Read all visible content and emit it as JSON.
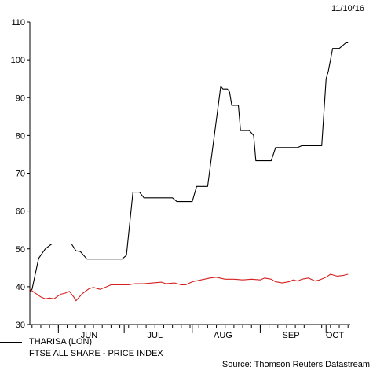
{
  "date_label": "11/10/16",
  "source_label": "Source: Thomson Reuters Datastream",
  "colors": {
    "tharisa": "#000000",
    "ftse": "#d62020",
    "axis": "#000000"
  },
  "chart_data": {
    "type": "line",
    "title": "",
    "xlabel": "",
    "ylabel": "",
    "ylim": [
      30,
      110
    ],
    "y_ticks": [
      30,
      40,
      50,
      60,
      70,
      80,
      90,
      100,
      110
    ],
    "x_range": [
      "2016-05-19",
      "2016-10-12"
    ],
    "x_tick_labels": [
      {
        "label": "JUN",
        "date": "2016-06-15"
      },
      {
        "label": "JUL",
        "date": "2016-07-15"
      },
      {
        "label": "AUG",
        "date": "2016-08-15"
      },
      {
        "label": "SEP",
        "date": "2016-09-15"
      },
      {
        "label": "OCT",
        "date": "2016-10-05"
      }
    ],
    "grid": false,
    "legend_position": "bottom-left",
    "series": [
      {
        "name": "THARISA (LON)",
        "color": "#000000",
        "points": [
          [
            "2016-05-19",
            38.8
          ],
          [
            "2016-05-20",
            39.3
          ],
          [
            "2016-05-23",
            47.5
          ],
          [
            "2016-05-26",
            50.0
          ],
          [
            "2016-05-29",
            51.3
          ],
          [
            "2016-06-07",
            51.3
          ],
          [
            "2016-06-09",
            49.5
          ],
          [
            "2016-06-11",
            49.3
          ],
          [
            "2016-06-14",
            47.3
          ],
          [
            "2016-06-30",
            47.3
          ],
          [
            "2016-07-02",
            48.3
          ],
          [
            "2016-07-05",
            65.0
          ],
          [
            "2016-07-08",
            65.0
          ],
          [
            "2016-07-10",
            63.5
          ],
          [
            "2016-07-23",
            63.5
          ],
          [
            "2016-07-25",
            62.5
          ],
          [
            "2016-08-01",
            62.5
          ],
          [
            "2016-08-03",
            66.5
          ],
          [
            "2016-08-08",
            66.5
          ],
          [
            "2016-08-14",
            93.0
          ],
          [
            "2016-08-15",
            92.3
          ],
          [
            "2016-08-17",
            92.3
          ],
          [
            "2016-08-18",
            91.5
          ],
          [
            "2016-08-19",
            88.0
          ],
          [
            "2016-08-22",
            88.0
          ],
          [
            "2016-08-23",
            81.3
          ],
          [
            "2016-08-27",
            81.3
          ],
          [
            "2016-08-29",
            80.0
          ],
          [
            "2016-08-30",
            73.3
          ],
          [
            "2016-09-06",
            73.3
          ],
          [
            "2016-09-08",
            76.8
          ],
          [
            "2016-09-18",
            76.8
          ],
          [
            "2016-09-20",
            77.3
          ],
          [
            "2016-09-29",
            77.3
          ],
          [
            "2016-10-01",
            95.0
          ],
          [
            "2016-10-02",
            97.0
          ],
          [
            "2016-10-04",
            103.0
          ],
          [
            "2016-10-07",
            103.0
          ],
          [
            "2016-10-10",
            104.5
          ],
          [
            "2016-10-11",
            104.5
          ]
        ]
      },
      {
        "name": "FTSE ALL SHARE - PRICE INDEX",
        "color": "#d62020",
        "points": [
          [
            "2016-05-19",
            39.3
          ],
          [
            "2016-05-21",
            38.5
          ],
          [
            "2016-05-24",
            37.3
          ],
          [
            "2016-05-26",
            36.8
          ],
          [
            "2016-05-28",
            37.0
          ],
          [
            "2016-05-30",
            36.8
          ],
          [
            "2016-06-02",
            38.0
          ],
          [
            "2016-06-04",
            38.3
          ],
          [
            "2016-06-06",
            38.8
          ],
          [
            "2016-06-08",
            37.3
          ],
          [
            "2016-06-09",
            36.3
          ],
          [
            "2016-06-12",
            38.2
          ],
          [
            "2016-06-15",
            39.5
          ],
          [
            "2016-06-17",
            39.8
          ],
          [
            "2016-06-20",
            39.3
          ],
          [
            "2016-06-23",
            40.0
          ],
          [
            "2016-06-25",
            40.5
          ],
          [
            "2016-06-29",
            40.5
          ],
          [
            "2016-07-03",
            40.5
          ],
          [
            "2016-07-06",
            40.8
          ],
          [
            "2016-07-10",
            40.8
          ],
          [
            "2016-07-14",
            41.0
          ],
          [
            "2016-07-18",
            41.2
          ],
          [
            "2016-07-20",
            40.8
          ],
          [
            "2016-07-24",
            41.0
          ],
          [
            "2016-07-27",
            40.5
          ],
          [
            "2016-07-29",
            40.5
          ],
          [
            "2016-08-01",
            41.3
          ],
          [
            "2016-08-05",
            41.8
          ],
          [
            "2016-08-09",
            42.3
          ],
          [
            "2016-08-12",
            42.5
          ],
          [
            "2016-08-16",
            42.0
          ],
          [
            "2016-08-20",
            42.0
          ],
          [
            "2016-08-24",
            41.8
          ],
          [
            "2016-08-28",
            42.0
          ],
          [
            "2016-09-01",
            41.8
          ],
          [
            "2016-09-03",
            42.3
          ],
          [
            "2016-09-06",
            42.0
          ],
          [
            "2016-09-08",
            41.3
          ],
          [
            "2016-09-11",
            41.0
          ],
          [
            "2016-09-14",
            41.3
          ],
          [
            "2016-09-16",
            41.8
          ],
          [
            "2016-09-18",
            41.5
          ],
          [
            "2016-09-20",
            42.0
          ],
          [
            "2016-09-23",
            42.3
          ],
          [
            "2016-09-26",
            41.5
          ],
          [
            "2016-09-28",
            41.8
          ],
          [
            "2016-10-01",
            42.5
          ],
          [
            "2016-10-03",
            43.3
          ],
          [
            "2016-10-06",
            42.8
          ],
          [
            "2016-10-09",
            43.0
          ],
          [
            "2016-10-11",
            43.3
          ]
        ]
      }
    ]
  }
}
